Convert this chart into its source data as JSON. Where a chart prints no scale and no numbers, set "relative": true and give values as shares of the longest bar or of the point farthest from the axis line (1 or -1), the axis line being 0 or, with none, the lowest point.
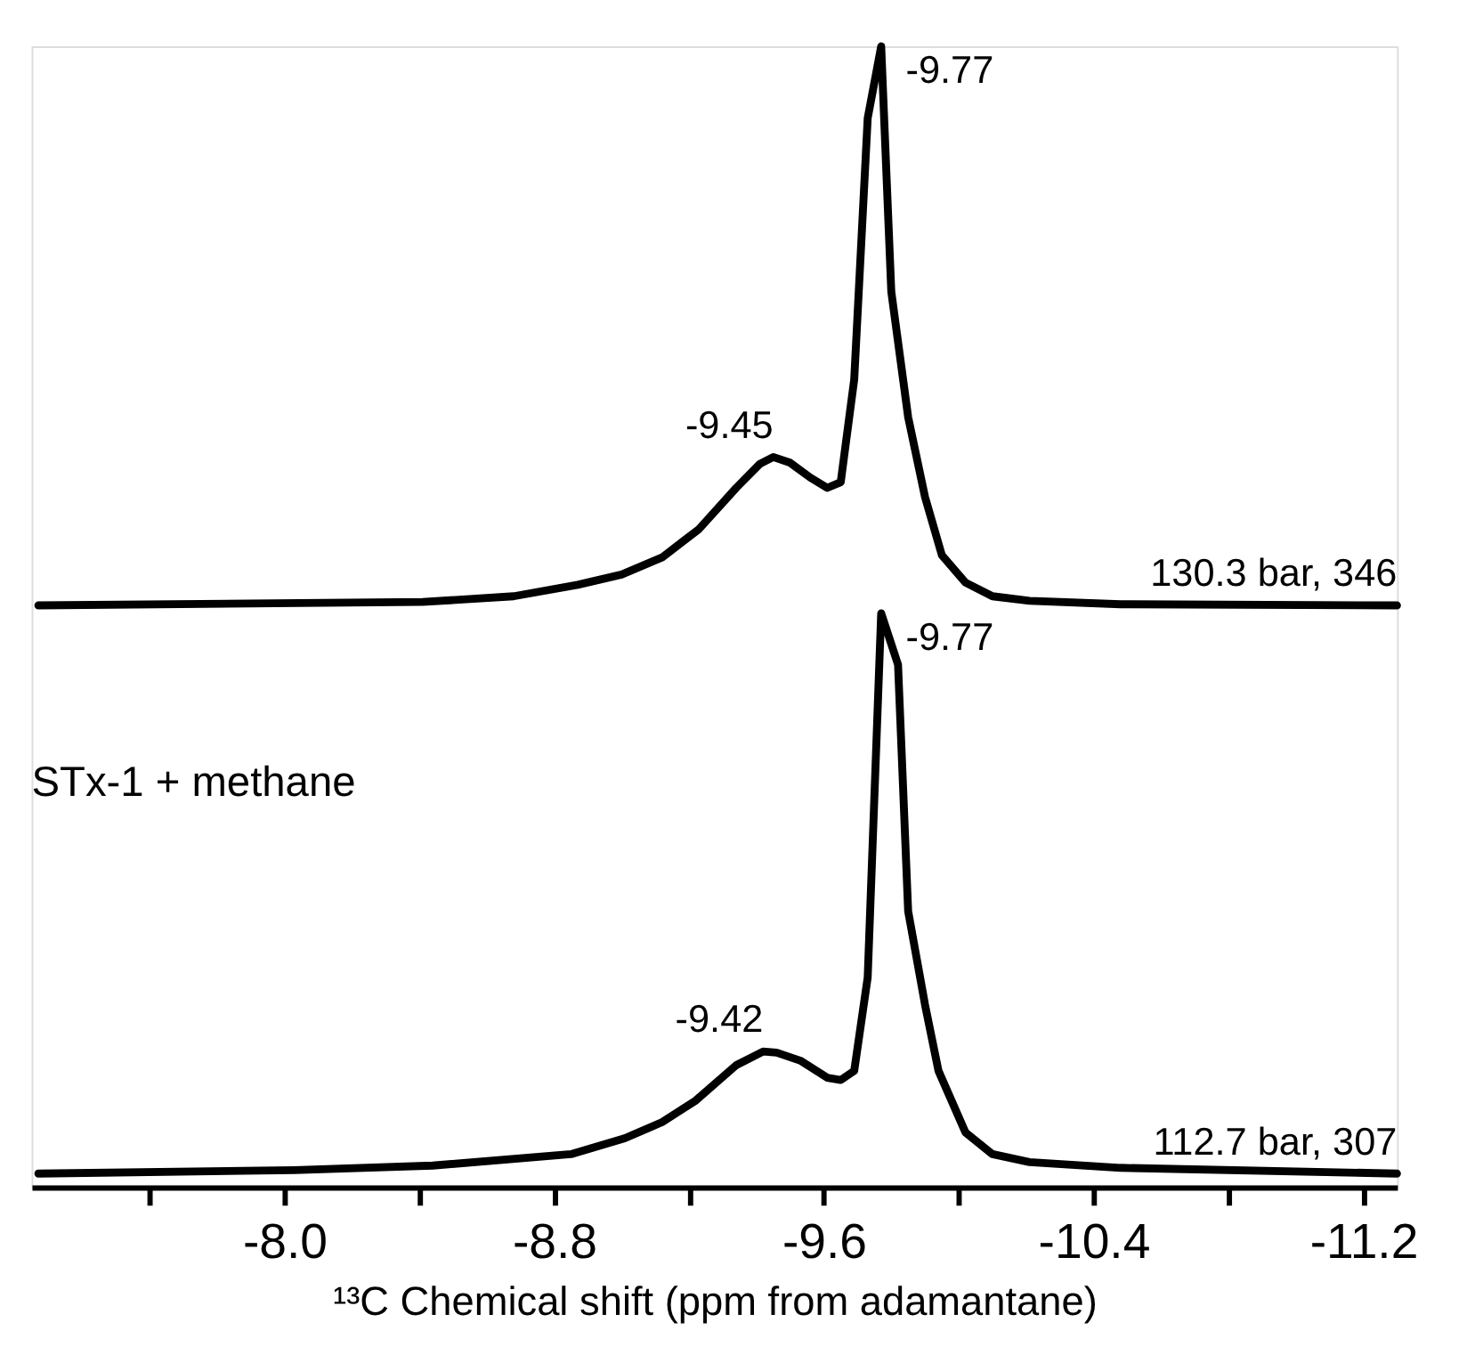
{
  "chart_data": {
    "type": "line",
    "relative": true,
    "xlabel": "¹³C Chemical shift (ppm from adamantane)",
    "xlim": [
      -7.25,
      -11.3
    ],
    "xticks": [
      {
        "value": -7.6,
        "label": null
      },
      {
        "value": -8.0,
        "label": "-8.0"
      },
      {
        "value": -8.4,
        "label": null
      },
      {
        "value": -8.8,
        "label": "-8.8"
      },
      {
        "value": -9.2,
        "label": null
      },
      {
        "value": -9.6,
        "label": "-9.6"
      },
      {
        "value": -10.0,
        "label": null
      },
      {
        "value": -10.4,
        "label": "-10.4"
      },
      {
        "value": -10.8,
        "label": null
      },
      {
        "value": -11.2,
        "label": "-11.2"
      }
    ],
    "grid": false,
    "legend": false,
    "marker": "none",
    "line_style": "solid",
    "series": [
      {
        "name": "130.3 bar, 346",
        "color": "#000000",
        "x": [
          -7.27,
          -8.41,
          -8.68,
          -8.87,
          -9.0,
          -9.12,
          -9.23,
          -9.34,
          -9.41,
          -9.45,
          -9.5,
          -9.56,
          -9.61,
          -9.65,
          -9.69,
          -9.73,
          -9.77,
          -9.8,
          -9.85,
          -9.9,
          -9.95,
          -10.02,
          -10.1,
          -10.21,
          -10.48,
          -11.3
        ],
        "values": [
          0.51,
          0.513,
          0.518,
          0.528,
          0.537,
          0.552,
          0.577,
          0.613,
          0.634,
          0.64,
          0.635,
          0.622,
          0.613,
          0.618,
          0.708,
          0.937,
          1.0,
          0.785,
          0.675,
          0.605,
          0.554,
          0.53,
          0.518,
          0.514,
          0.511,
          0.51
        ]
      },
      {
        "name": "112.7 bar, 307",
        "color": "#000000",
        "x": [
          -7.27,
          -8.03,
          -8.44,
          -8.85,
          -9.01,
          -9.12,
          -9.22,
          -9.34,
          -9.42,
          -9.46,
          -9.53,
          -9.61,
          -9.65,
          -9.69,
          -9.73,
          -9.77,
          -9.82,
          -9.85,
          -9.9,
          -9.94,
          -10.02,
          -10.1,
          -10.21,
          -10.48,
          -11.3
        ],
        "values": [
          0.012,
          0.015,
          0.019,
          0.029,
          0.043,
          0.057,
          0.076,
          0.107,
          0.119,
          0.118,
          0.111,
          0.096,
          0.094,
          0.102,
          0.184,
          0.503,
          0.458,
          0.242,
          0.16,
          0.102,
          0.048,
          0.029,
          0.022,
          0.017,
          0.012
        ]
      }
    ],
    "annotations": [
      {
        "text": "-9.77",
        "x": -9.77,
        "y": 1.0
      },
      {
        "text": "-9.45",
        "x": -9.45,
        "y": 0.64
      },
      {
        "text": "-9.77",
        "x": -9.77,
        "y": 0.503
      },
      {
        "text": "-9.42",
        "x": -9.42,
        "y": 0.119
      },
      "STx-1 + methane"
    ]
  }
}
